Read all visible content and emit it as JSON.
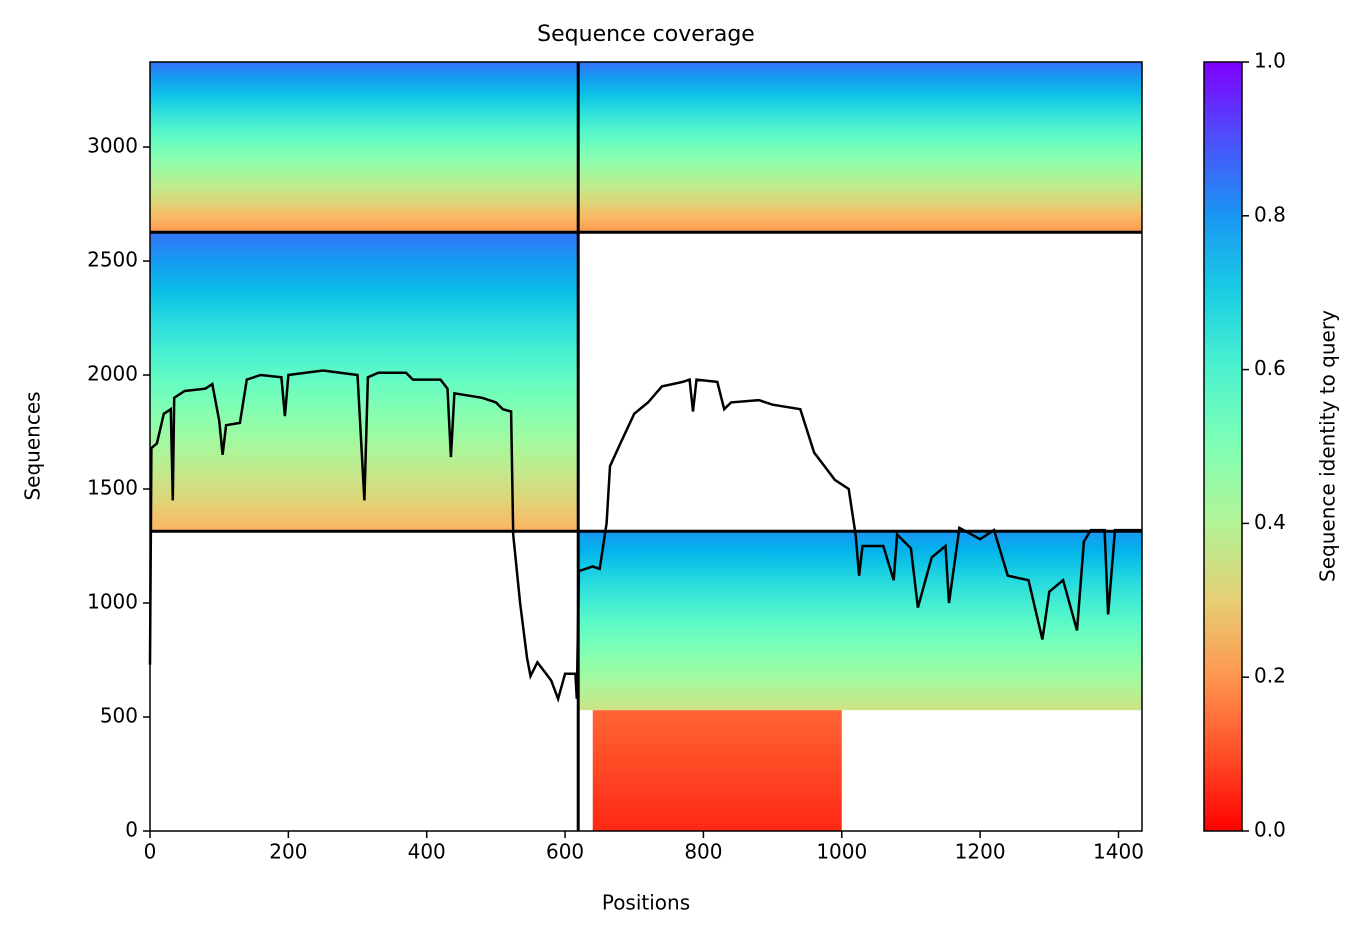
{
  "chart_data": {
    "type": "coverage",
    "title": "Sequence coverage",
    "xlabel": "Positions",
    "ylabel": "Sequences",
    "xlim": [
      0,
      1434
    ],
    "ylim": [
      0,
      3373
    ],
    "xticks": [
      0,
      200,
      400,
      600,
      800,
      1000,
      1200,
      1400
    ],
    "yticks": [
      0,
      500,
      1000,
      1500,
      2000,
      2500,
      3000
    ],
    "colormap": "rainbow_r",
    "colorbar": {
      "label": "Sequence identity to query",
      "lim": [
        0,
        1
      ],
      "ticks": [
        {
          "value": 0,
          "label": "0.0"
        },
        {
          "value": 0.2,
          "label": "0.2"
        },
        {
          "value": 0.4,
          "label": "0.4"
        },
        {
          "value": 0.6,
          "label": "0.6"
        },
        {
          "value": 0.8,
          "label": "0.8"
        },
        {
          "value": 1,
          "label": "1.0"
        }
      ]
    },
    "regions": [
      {
        "x": [
          0,
          619
        ],
        "y": [
          2626,
          3373
        ],
        "identity": [
          0.2,
          0.85
        ]
      },
      {
        "x": [
          619,
          1434
        ],
        "y": [
          2626,
          3373
        ],
        "identity": [
          0.2,
          0.85
        ]
      },
      {
        "x": [
          0,
          620
        ],
        "y": [
          1315,
          2626
        ],
        "identity": [
          0.25,
          0.85
        ]
      },
      {
        "x": [
          619,
          1434
        ],
        "y": [
          530,
          1315
        ],
        "identity": [
          0.35,
          0.8
        ]
      },
      {
        "x": [
          640,
          1000
        ],
        "y": [
          0,
          530
        ],
        "identity": [
          0.05,
          0.13
        ]
      }
    ],
    "boundaries": {
      "x": [
        619
      ],
      "y": [
        1315,
        2626
      ]
    },
    "line": {
      "color": "#000000",
      "x": [
        0,
        2,
        10,
        20,
        30,
        33,
        35,
        50,
        80,
        90,
        100,
        105,
        110,
        130,
        140,
        160,
        190,
        195,
        200,
        250,
        300,
        310,
        315,
        330,
        370,
        380,
        420,
        430,
        435,
        440,
        480,
        500,
        510,
        522,
        525,
        535,
        545,
        550,
        560,
        580,
        590,
        600,
        615,
        617,
        620,
        640,
        650,
        660,
        665,
        680,
        700,
        720,
        740,
        770,
        780,
        785,
        790,
        820,
        830,
        840,
        880,
        900,
        940,
        960,
        990,
        1010,
        1020,
        1025,
        1030,
        1060,
        1075,
        1080,
        1100,
        1110,
        1130,
        1150,
        1155,
        1170,
        1200,
        1220,
        1240,
        1270,
        1290,
        1300,
        1320,
        1340,
        1350,
        1360,
        1380,
        1385,
        1395,
        1420,
        1434
      ],
      "values": [
        730,
        1680,
        1700,
        1830,
        1850,
        1450,
        1900,
        1930,
        1940,
        1960,
        1800,
        1650,
        1780,
        1790,
        1980,
        2000,
        1990,
        1820,
        2000,
        2020,
        2000,
        1450,
        1990,
        2010,
        2010,
        1980,
        1980,
        1940,
        1640,
        1920,
        1900,
        1880,
        1850,
        1840,
        1300,
        1000,
        760,
        680,
        740,
        660,
        580,
        690,
        690,
        580,
        1140,
        1160,
        1150,
        1350,
        1600,
        1700,
        1830,
        1880,
        1950,
        1970,
        1980,
        1840,
        1980,
        1970,
        1850,
        1880,
        1890,
        1870,
        1850,
        1660,
        1540,
        1500,
        1300,
        1120,
        1250,
        1250,
        1100,
        1300,
        1240,
        980,
        1200,
        1250,
        1000,
        1330,
        1280,
        1320,
        1120,
        1100,
        840,
        1050,
        1100,
        880,
        1270,
        1320,
        1320,
        950,
        1320,
        1320,
        1320
      ]
    }
  }
}
